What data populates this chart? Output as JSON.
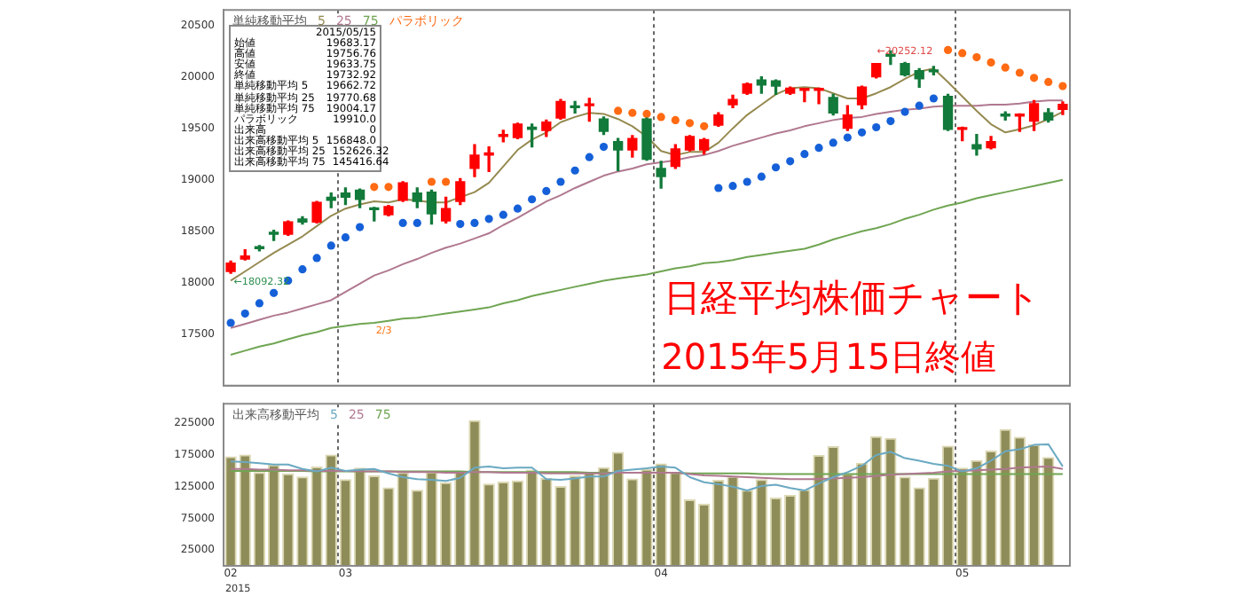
{
  "chart_data": [
    {
      "type": "candlestick",
      "title": "日経平均株価チャート",
      "subtitle": "2015年5月15日終値",
      "categories": [
        "02",
        null,
        null,
        null,
        null,
        null,
        null,
        null,
        "03",
        null,
        null,
        null,
        null,
        null,
        null,
        null,
        null,
        null,
        null,
        null,
        null,
        null,
        null,
        null,
        null,
        null,
        null,
        null,
        null,
        null,
        "04",
        null,
        null,
        null,
        null,
        null,
        null,
        null,
        null,
        null,
        null,
        null,
        null,
        null,
        null,
        null,
        null,
        null,
        null,
        null,
        null,
        "05",
        null,
        null,
        null,
        null,
        null,
        null,
        null
      ],
      "ylim": [
        17000,
        20650
      ],
      "yticks": [
        17500,
        18000,
        18500,
        19000,
        19500,
        20000,
        20500
      ],
      "tick_labels": "y",
      "grid": "x",
      "legend": "top left",
      "legend_title": "単純移動平均",
      "annotations": [
        "←18092.32",
        "←20252.12",
        "2/3"
      ],
      "series": [
        {
          "type": "candlestick",
          "ohlc": [
            [
              18110,
              18210,
              18092.32,
              18190
            ],
            [
              18230,
              18320,
              18220,
              18260
            ],
            [
              18350,
              18360,
              18310,
              18330
            ],
            [
              18490,
              18510,
              18410,
              18470
            ],
            [
              18470,
              18600,
              18460,
              18590
            ],
            [
              18620,
              18640,
              18570,
              18590
            ],
            [
              18590,
              18790,
              18580,
              18780
            ],
            [
              18830,
              18870,
              18730,
              18800
            ],
            [
              18870,
              18920,
              18760,
              18830
            ],
            [
              18900,
              18910,
              18730,
              18810
            ],
            [
              18720,
              18730,
              18600,
              18710
            ],
            [
              18660,
              18750,
              18650,
              18740
            ],
            [
              18800,
              18980,
              18790,
              18970
            ],
            [
              18870,
              18920,
              18730,
              18790
            ],
            [
              18880,
              18900,
              18570,
              18670
            ],
            [
              18600,
              18830,
              18580,
              18720
            ],
            [
              18790,
              19010,
              18760,
              18980
            ],
            [
              19110,
              19340,
              19030,
              19240
            ],
            [
              19240,
              19320,
              19080,
              19260
            ],
            [
              19420,
              19480,
              19370,
              19440
            ],
            [
              19410,
              19550,
              19400,
              19540
            ],
            [
              19510,
              19540,
              19320,
              19490
            ],
            [
              19480,
              19580,
              19420,
              19560
            ],
            [
              19600,
              19780,
              19590,
              19760
            ],
            [
              19710,
              19760,
              19650,
              19700
            ],
            [
              19720,
              19790,
              19570,
              19730
            ],
            [
              19590,
              19610,
              19440,
              19470
            ],
            [
              19370,
              19400,
              19090,
              19290
            ],
            [
              19290,
              19430,
              19220,
              19400
            ],
            [
              19590,
              19600,
              19190,
              19200
            ],
            [
              19110,
              19180,
              18920,
              19030
            ],
            [
              19130,
              19340,
              19110,
              19300
            ],
            [
              19290,
              19430,
              19280,
              19420
            ],
            [
              19290,
              19400,
              19250,
              19390
            ],
            [
              19530,
              19650,
              19520,
              19630
            ],
            [
              19730,
              19820,
              19700,
              19780
            ],
            [
              19840,
              19940,
              19830,
              19930
            ],
            [
              19970,
              20000,
              19840,
              19920
            ],
            [
              19960,
              19970,
              19830,
              19910
            ],
            [
              19840,
              19900,
              19830,
              19890
            ],
            [
              19870,
              19880,
              19760,
              19880
            ],
            [
              19870,
              19890,
              19740,
              19880
            ],
            [
              19800,
              19830,
              19630,
              19650
            ],
            [
              19500,
              19720,
              19480,
              19630
            ],
            [
              19730,
              19910,
              19690,
              19900
            ],
            [
              20000,
              20130,
              19990,
              20130
            ],
            [
              20210,
              20252.12,
              20120,
              20200
            ],
            [
              20130,
              20140,
              20010,
              20020
            ],
            [
              20060,
              20080,
              19900,
              19980
            ],
            [
              20060,
              20100,
              20020,
              20050
            ],
            [
              19810,
              19830,
              19480,
              19490
            ],
            [
              19490,
              19510,
              19380,
              19500
            ],
            [
              19340,
              19440,
              19240,
              19300
            ],
            [
              19310,
              19420,
              19300,
              19370
            ],
            [
              19630,
              19660,
              19580,
              19620
            ],
            [
              19620,
              19640,
              19470,
              19630
            ],
            [
              19570,
              19770,
              19480,
              19740
            ],
            [
              19650,
              19690,
              19560,
              19580
            ],
            [
              19683.17,
              19756.76,
              19633.75,
              19732.92
            ]
          ],
          "colors": [
            "#ff0000",
            "#ff0000",
            "#127a3a",
            "#127a3a",
            "#ff0000",
            "#127a3a",
            "#ff0000",
            "#127a3a",
            "#127a3a",
            "#127a3a",
            "#127a3a",
            "#ff0000",
            "#ff0000",
            "#127a3a",
            "#127a3a",
            "#ff0000",
            "#ff0000",
            "#ff0000",
            "#ff0000",
            "#ff0000",
            "#ff0000",
            "#127a3a",
            "#ff0000",
            "#ff0000",
            "#127a3a",
            "#ff0000",
            "#127a3a",
            "#127a3a",
            "#ff0000",
            "#127a3a",
            "#127a3a",
            "#ff0000",
            "#ff0000",
            "#ff0000",
            "#ff0000",
            "#ff0000",
            "#ff0000",
            "#127a3a",
            "#127a3a",
            "#ff0000",
            "#ff0000",
            "#ff0000",
            "#127a3a",
            "#ff0000",
            "#ff0000",
            "#ff0000",
            "#127a3a",
            "#127a3a",
            "#127a3a",
            "#127a3a",
            "#127a3a",
            "#ff0000",
            "#127a3a",
            "#ff0000",
            "#127a3a",
            "#ff0000",
            "#ff0000",
            "#127a3a",
            "#ff0000"
          ]
        },
        {
          "type": "line",
          "name": "5",
          "color": "#958a50",
          "values": [
            18020,
            18110,
            18200,
            18290,
            18370,
            18450,
            18550,
            18650,
            18720,
            18760,
            18790,
            18780,
            18810,
            18800,
            18780,
            18780,
            18830,
            18880,
            18970,
            19130,
            19290,
            19390,
            19460,
            19560,
            19610,
            19650,
            19640,
            19590,
            19520,
            19420,
            19280,
            19240,
            19270,
            19270,
            19360,
            19500,
            19630,
            19730,
            19830,
            19890,
            19900,
            19890,
            19840,
            19790,
            19790,
            19840,
            19900,
            19980,
            20050,
            20080,
            19950,
            19810,
            19670,
            19540,
            19460,
            19490,
            19530,
            19590,
            19660
          ]
        },
        {
          "type": "line",
          "name": "25",
          "color": "#b07890",
          "values": [
            17560,
            17600,
            17640,
            17680,
            17710,
            17750,
            17790,
            17830,
            17910,
            17990,
            18070,
            18120,
            18180,
            18230,
            18290,
            18340,
            18380,
            18430,
            18480,
            18560,
            18630,
            18710,
            18790,
            18850,
            18920,
            18980,
            19040,
            19080,
            19110,
            19150,
            19170,
            19190,
            19220,
            19240,
            19280,
            19330,
            19370,
            19410,
            19450,
            19480,
            19520,
            19550,
            19580,
            19600,
            19610,
            19640,
            19660,
            19680,
            19690,
            19710,
            19720,
            19720,
            19720,
            19730,
            19730,
            19740,
            19760,
            19770,
            19770
          ]
        },
        {
          "type": "line",
          "name": "75",
          "color": "#6fa552",
          "values": [
            17300,
            17340,
            17380,
            17410,
            17450,
            17490,
            17520,
            17560,
            17580,
            17600,
            17610,
            17630,
            17650,
            17660,
            17680,
            17700,
            17720,
            17740,
            17760,
            17800,
            17830,
            17870,
            17900,
            17930,
            17960,
            17990,
            18020,
            18040,
            18060,
            18080,
            18110,
            18140,
            18160,
            18190,
            18200,
            18220,
            18250,
            18270,
            18290,
            18310,
            18330,
            18370,
            18420,
            18460,
            18500,
            18530,
            18570,
            18620,
            18660,
            18710,
            18750,
            18780,
            18820,
            18850,
            18880,
            18910,
            18940,
            18970,
            19000
          ]
        },
        {
          "type": "scatter",
          "name": "パラボリック",
          "color": "#ff6a13",
          "marker": "circle",
          "values": [
            17610,
            17700,
            17800,
            17900,
            18020,
            18130,
            18240,
            18360,
            18440,
            18540,
            18930,
            18930,
            18580,
            18580,
            18980,
            18980,
            18570,
            18580,
            18620,
            18660,
            18720,
            18810,
            18890,
            18980,
            19090,
            19220,
            19320,
            19670,
            19650,
            19640,
            19610,
            19580,
            19550,
            19520,
            18920,
            18940,
            18980,
            19030,
            19120,
            19180,
            19250,
            19310,
            19360,
            19410,
            19460,
            19510,
            19570,
            19660,
            19720,
            19790,
            20260,
            20230,
            20190,
            20140,
            20090,
            20040,
            19990,
            19950,
            19910
          ],
          "colors": [
            "#1560d8",
            "#1560d8",
            "#1560d8",
            "#1560d8",
            "#1560d8",
            "#1560d8",
            "#1560d8",
            "#1560d8",
            "#1560d8",
            "#1560d8",
            "#ff6a13",
            "#ff6a13",
            "#1560d8",
            "#1560d8",
            "#ff6a13",
            "#ff6a13",
            "#1560d8",
            "#1560d8",
            "#1560d8",
            "#1560d8",
            "#1560d8",
            "#1560d8",
            "#1560d8",
            "#1560d8",
            "#1560d8",
            "#1560d8",
            "#1560d8",
            "#ff6a13",
            "#ff6a13",
            "#ff6a13",
            "#ff6a13",
            "#ff6a13",
            "#ff6a13",
            "#ff6a13",
            "#1560d8",
            "#1560d8",
            "#1560d8",
            "#1560d8",
            "#1560d8",
            "#1560d8",
            "#1560d8",
            "#1560d8",
            "#1560d8",
            "#1560d8",
            "#1560d8",
            "#1560d8",
            "#1560d8",
            "#1560d8",
            "#1560d8",
            "#1560d8",
            "#ff6a13",
            "#ff6a13",
            "#ff6a13",
            "#ff6a13",
            "#ff6a13",
            "#ff6a13",
            "#ff6a13",
            "#ff6a13",
            "#ff6a13"
          ]
        }
      ]
    },
    {
      "type": "bar",
      "categories": [
        "02",
        null,
        null,
        null,
        null,
        null,
        null,
        null,
        "03",
        null,
        null,
        null,
        null,
        null,
        null,
        null,
        null,
        null,
        null,
        null,
        null,
        null,
        null,
        null,
        null,
        null,
        null,
        null,
        null,
        null,
        "04",
        null,
        null,
        null,
        null,
        null,
        null,
        null,
        null,
        null,
        null,
        null,
        null,
        null,
        null,
        null,
        null,
        null,
        null,
        null,
        null,
        "05",
        null,
        null,
        null,
        null,
        null,
        null,
        null
      ],
      "ylim": [
        0,
        256000
      ],
      "yticks": [
        25000,
        75000,
        125000,
        175000,
        225000
      ],
      "grid": "x",
      "legend": "top left",
      "legend_title": "出来高移動平均",
      "annotations": [
        "2015"
      ],
      "series": [
        {
          "type": "bar",
          "color": "#8e8c58",
          "values": [
            172000,
            175000,
            147000,
            159000,
            145000,
            140000,
            156000,
            175000,
            136000,
            154000,
            142000,
            123000,
            147000,
            119000,
            148000,
            131000,
            149000,
            229000,
            129000,
            132000,
            134000,
            151000,
            138000,
            125000,
            142000,
            147000,
            155000,
            179000,
            137000,
            152000,
            161000,
            147000,
            104000,
            97000,
            135000,
            141000,
            119000,
            136000,
            107000,
            111000,
            120000,
            174000,
            188000,
            145000,
            162000,
            204000,
            201000,
            140000,
            123000,
            138000,
            189000,
            154000,
            166000,
            181000,
            215000,
            203000,
            191000,
            171000,
            0
          ]
        },
        {
          "type": "line",
          "name": "5",
          "color": "#6aa9c2",
          "values": [
            165000,
            164000,
            162000,
            160000,
            160000,
            153000,
            149000,
            155000,
            150000,
            152000,
            153000,
            146000,
            140000,
            137000,
            136000,
            134000,
            139000,
            155000,
            157000,
            154000,
            155000,
            155000,
            137000,
            136000,
            138000,
            141000,
            141000,
            150000,
            152000,
            154000,
            157000,
            155000,
            140000,
            132000,
            129000,
            125000,
            119000,
            126000,
            128000,
            123000,
            119000,
            130000,
            140000,
            148000,
            158000,
            175000,
            180000,
            170000,
            166000,
            161000,
            158000,
            149000,
            154000,
            166000,
            181000,
            184000,
            191000,
            192000,
            157000
          ]
        },
        {
          "type": "line",
          "name": "25",
          "color": "#b07890",
          "values": [
            153000,
            153000,
            152000,
            152000,
            151000,
            151000,
            150000,
            150000,
            150000,
            149000,
            149000,
            149000,
            148000,
            148000,
            148000,
            147000,
            147000,
            148000,
            148000,
            147000,
            147000,
            147000,
            146000,
            146000,
            146000,
            146000,
            146000,
            147000,
            147000,
            147000,
            147000,
            147000,
            145000,
            143000,
            142000,
            141000,
            140000,
            139000,
            138000,
            137000,
            137000,
            137000,
            138000,
            139000,
            140000,
            142000,
            144000,
            145000,
            146000,
            147000,
            149000,
            150000,
            151000,
            152000,
            153000,
            155000,
            156000,
            157000,
            153000
          ]
        },
        {
          "type": "line",
          "name": "75",
          "color": "#6fa552",
          "values": [
            150000,
            150000,
            150000,
            150000,
            150000,
            150000,
            149000,
            149000,
            149000,
            149000,
            149000,
            149000,
            149000,
            149000,
            149000,
            149000,
            149000,
            148000,
            148000,
            148000,
            148000,
            148000,
            148000,
            148000,
            148000,
            147000,
            147000,
            147000,
            147000,
            147000,
            147000,
            147000,
            146000,
            146000,
            146000,
            146000,
            146000,
            145000,
            145000,
            145000,
            145000,
            145000,
            145000,
            145000,
            145000,
            145000,
            145000,
            145000,
            145000,
            145000,
            145000,
            145000,
            145000,
            145000,
            145000,
            145000,
            145000,
            145000,
            145000
          ]
        }
      ]
    },
    {
      "type": "other",
      "title": "2015/05/15",
      "annotations": [
        "始値 19683.17",
        "高値 19756.76",
        "安値 19633.75",
        "終値 19732.92",
        "単純移動平均 5 19662.72",
        "単純移動平均 25 19770.68",
        "単純移動平均 75 19004.17",
        "パラボリック 19910.0",
        "出来高 0",
        "出来高移動平均 5 156848.0",
        "出来高移動平均 25 152626.32",
        "出来高移動平均 75 145416.64"
      ]
    }
  ]
}
